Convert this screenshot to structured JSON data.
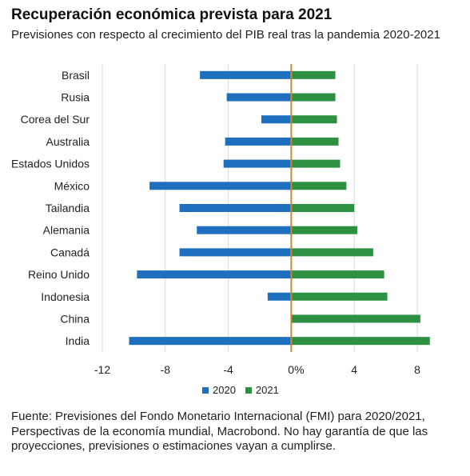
{
  "title": "Recuperación económica prevista para 2021",
  "subtitle": "Previsiones con respecto al crecimiento del PIB real tras la pandemia 2020-2021",
  "source": "Fuente: Previsiones del Fondo Monetario Internacional (FMI) para 2020/2021, Perspectivas de la economía mundial, Macrobond. No hay garantía de que las proyecciones, previsiones o estimaciones vayan a cumplirse.",
  "colors": {
    "series_2020": "#1f6fbf",
    "series_2021": "#2e9142",
    "zero_line": "#c98a2e",
    "grid": "#d9d9d9"
  },
  "chart_data": {
    "type": "bar",
    "orientation": "horizontal",
    "categories": [
      "Brasil",
      "Rusia",
      "Corea del Sur",
      "Australia",
      "Estados Unidos",
      "México",
      "Tailandia",
      "Alemania",
      "Canadá",
      "Reino Unido",
      "Indonesia",
      "China",
      "India"
    ],
    "series": [
      {
        "name": "2020",
        "values": [
          -5.8,
          -4.1,
          -1.9,
          -4.2,
          -4.3,
          -9.0,
          -7.1,
          -6.0,
          -7.1,
          -9.8,
          -1.5,
          1.9,
          -10.3
        ]
      },
      {
        "name": "2021",
        "values": [
          2.8,
          2.8,
          2.9,
          3.0,
          3.1,
          3.5,
          4.0,
          4.2,
          5.2,
          5.9,
          6.1,
          8.2,
          8.8
        ]
      }
    ],
    "xlim": [
      -12,
      9
    ],
    "x_ticks": [
      "-12",
      "-8",
      "-4",
      "0%",
      "4",
      "8"
    ],
    "x_tick_values": [
      -12,
      -8,
      -4,
      0,
      4,
      8
    ],
    "grid": true,
    "legend": "bottom"
  }
}
